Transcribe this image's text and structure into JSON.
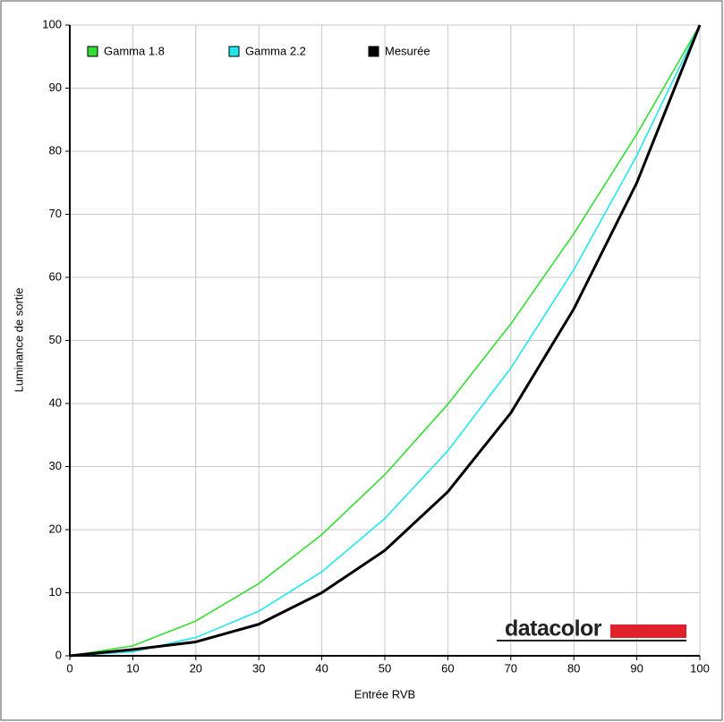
{
  "chart_data": {
    "type": "line",
    "x_label": "Entrée RVB",
    "y_label": "Luminance de sortie",
    "logo": "datacolor",
    "x": [
      0,
      10,
      20,
      30,
      40,
      50,
      60,
      70,
      80,
      90,
      100
    ],
    "series": [
      {
        "name": "Gamma 1.8",
        "color": "#33dd33",
        "values": [
          0,
          1.58,
          5.52,
          11.45,
          19.22,
          28.72,
          39.87,
          52.62,
          66.92,
          82.72,
          100
        ]
      },
      {
        "name": "Gamma 2.2",
        "color": "#22e6ee",
        "values": [
          0,
          0.63,
          2.9,
          7.07,
          13.32,
          21.76,
          32.5,
          45.62,
          61.21,
          79.31,
          100
        ]
      },
      {
        "name": "Mesurée",
        "color": "#000000",
        "values": [
          0,
          1,
          2.2,
          5,
          10,
          16.7,
          26,
          38.5,
          55,
          75,
          100
        ]
      }
    ],
    "xlim": [
      0,
      100
    ],
    "xticks": [
      0,
      10,
      20,
      30,
      40,
      50,
      60,
      70,
      80,
      90,
      100
    ],
    "ylim": [
      0,
      100
    ],
    "yticks": [
      0,
      10,
      20,
      30,
      40,
      50,
      60,
      70,
      80,
      90,
      100
    ],
    "grid": true
  }
}
